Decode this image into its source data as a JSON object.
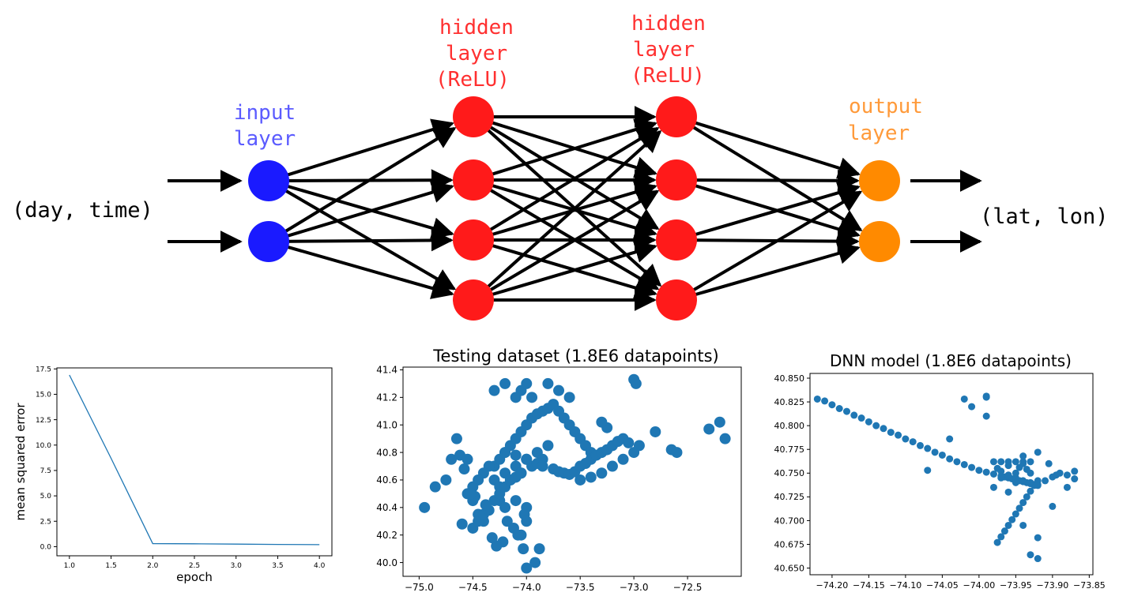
{
  "colors": {
    "input": "#1a1aff",
    "hidden": "#ff1a1a",
    "output": "#ff8a00",
    "input_label": "#5b5bff",
    "hidden_label": "#ff3030",
    "output_label": "#ff9a3a",
    "point": "#1f77b4",
    "arrow": "#000000"
  },
  "network": {
    "input_text": "(day, time)",
    "output_text": "(lat, lon)",
    "input_label": [
      "input",
      "layer"
    ],
    "hidden1_label": [
      "hidden",
      "layer",
      "(ReLU)"
    ],
    "hidden2_label": [
      "hidden",
      "layer",
      "(ReLU)"
    ],
    "output_label": [
      "output",
      "layer"
    ],
    "layer_sizes": [
      2,
      4,
      4,
      2
    ]
  },
  "chart_data": [
    {
      "type": "line",
      "title": "",
      "xlabel": "epoch",
      "ylabel": "mean squared error",
      "xlim": [
        0.85,
        4.15
      ],
      "ylim": [
        -0.9,
        17.6
      ],
      "xticks": [
        "1.0",
        "1.5",
        "2.0",
        "2.5",
        "3.0",
        "3.5",
        "4.0"
      ],
      "yticks": [
        "0.0",
        "2.5",
        "5.0",
        "7.5",
        "10.0",
        "12.5",
        "15.0",
        "17.5"
      ],
      "x": [
        1.0,
        1.25,
        1.5,
        1.75,
        2.0,
        2.5,
        3.0,
        3.5,
        4.0
      ],
      "y": [
        16.9,
        12.8,
        8.7,
        4.5,
        0.3,
        0.28,
        0.25,
        0.22,
        0.2
      ]
    },
    {
      "type": "scatter",
      "title": "Testing dataset (1.8E6 datapoints)",
      "xlabel": "",
      "ylabel": "",
      "xlim": [
        -75.15,
        -72.0
      ],
      "ylim": [
        39.9,
        41.42
      ],
      "xticks": [
        "−75.0",
        "−74.5",
        "−74.0",
        "−73.5",
        "−73.0",
        "−72.5"
      ],
      "yticks": [
        "40.0",
        "40.2",
        "40.4",
        "40.6",
        "40.8",
        "41.0",
        "41.2",
        "41.4"
      ],
      "x": [
        -74.3,
        -74.25,
        -74.2,
        -74.15,
        -74.1,
        -74.05,
        -74.0,
        -73.95,
        -73.9,
        -73.85,
        -73.8,
        -73.75,
        -73.7,
        -73.65,
        -73.6,
        -73.55,
        -73.5,
        -73.45,
        -73.4,
        -74.3,
        -74.2,
        -74.1,
        -74.0,
        -73.9,
        -73.8,
        -74.25,
        -74.15,
        -74.05,
        -73.95,
        -73.85,
        -74.35,
        -74.4,
        -74.45,
        -74.5,
        -74.55,
        -74.2,
        -74.1,
        -74.0,
        -73.9,
        -73.85,
        -73.75,
        -73.7,
        -73.65,
        -73.6,
        -73.55,
        -73.5,
        -73.45,
        -73.4,
        -73.35,
        -73.3,
        -73.25,
        -73.2,
        -73.15,
        -73.1,
        -73.05,
        -73.5,
        -73.4,
        -73.3,
        -73.2,
        -73.1,
        -73.0,
        -72.95,
        -74.3,
        -74.2,
        -74.1,
        -74.05,
        -74.0,
        -73.95,
        -74.25,
        -74.2,
        -74.1,
        -74.0,
        -74.02,
        -74.0,
        -74.05,
        -74.03,
        -74.95,
        -74.85,
        -74.75,
        -74.7,
        -74.65,
        -74.62,
        -74.58,
        -74.55,
        -74.5,
        -74.45,
        -74.4,
        -74.6,
        -74.5,
        -74.45,
        -74.4,
        -74.35,
        -74.3,
        -74.25,
        -74.2,
        -74.15,
        -74.1,
        -74.05,
        -73.0,
        -72.98,
        -72.8,
        -72.65,
        -72.6,
        -72.3,
        -72.2,
        -72.15,
        -73.25,
        -73.3,
        -73.8,
        -73.7,
        -73.6,
        -74.0,
        -73.92,
        -73.88,
        -74.18,
        -74.12,
        -74.08,
        -74.22,
        -74.28,
        -74.32,
        -74.38,
        -74.48,
        -74.52
      ],
      "y": [
        40.7,
        40.75,
        40.8,
        40.85,
        40.9,
        40.95,
        41.0,
        41.05,
        41.08,
        41.1,
        41.12,
        41.15,
        41.1,
        41.05,
        41.0,
        40.95,
        40.9,
        40.85,
        40.8,
        40.6,
        40.65,
        40.7,
        40.75,
        40.8,
        40.85,
        40.55,
        40.6,
        40.65,
        40.7,
        40.75,
        40.7,
        40.65,
        40.6,
        40.55,
        40.5,
        40.8,
        40.78,
        40.75,
        40.72,
        40.7,
        40.68,
        40.66,
        40.65,
        40.64,
        40.66,
        40.7,
        40.72,
        40.75,
        40.78,
        40.8,
        40.82,
        40.85,
        40.88,
        40.9,
        40.87,
        40.6,
        40.62,
        40.65,
        40.7,
        40.75,
        40.8,
        40.85,
        41.25,
        41.3,
        41.2,
        41.25,
        41.3,
        41.2,
        40.45,
        40.4,
        40.45,
        40.4,
        40.35,
        40.3,
        40.2,
        40.1,
        40.4,
        40.55,
        40.6,
        40.75,
        40.9,
        40.78,
        40.68,
        40.75,
        40.45,
        40.35,
        40.3,
        40.28,
        40.25,
        40.3,
        40.35,
        40.38,
        40.45,
        40.5,
        40.55,
        40.6,
        40.62,
        40.65,
        41.33,
        41.3,
        40.95,
        40.82,
        40.8,
        40.97,
        41.02,
        40.9,
        40.98,
        41.02,
        41.3,
        41.25,
        41.2,
        39.96,
        40.0,
        40.1,
        40.3,
        40.25,
        40.2,
        40.15,
        40.12,
        40.18,
        40.42,
        40.48,
        40.5
      ]
    },
    {
      "type": "scatter",
      "title": "DNN model (1.8E6 datapoints)",
      "xlabel": "",
      "ylabel": "",
      "xlim": [
        -74.23,
        -73.845
      ],
      "ylim": [
        40.643,
        40.855
      ],
      "xticks": [
        "−74.20",
        "−74.15",
        "−74.10",
        "−74.05",
        "−74.00",
        "−73.95",
        "−73.90",
        "−73.85"
      ],
      "yticks": [
        "40.650",
        "40.675",
        "40.700",
        "40.725",
        "40.750",
        "40.775",
        "40.800",
        "40.825",
        "40.850"
      ],
      "x": [
        -74.22,
        -74.21,
        -74.2,
        -74.19,
        -74.18,
        -74.17,
        -74.16,
        -74.15,
        -74.14,
        -74.13,
        -74.12,
        -74.11,
        -74.1,
        -74.09,
        -74.08,
        -74.07,
        -74.06,
        -74.05,
        -74.04,
        -74.03,
        -74.02,
        -74.01,
        -74.0,
        -73.99,
        -73.98,
        -73.97,
        -73.965,
        -73.96,
        -73.955,
        -73.95,
        -73.945,
        -73.94,
        -73.935,
        -73.93,
        -73.925,
        -73.92,
        -73.98,
        -73.97,
        -73.96,
        -73.95,
        -73.94,
        -73.93,
        -73.975,
        -73.97,
        -73.965,
        -73.96,
        -73.955,
        -73.95,
        -73.945,
        -73.94,
        -73.935,
        -73.93,
        -73.925,
        -73.92,
        -73.96,
        -73.95,
        -73.94,
        -73.93,
        -73.92,
        -73.91,
        -73.9,
        -73.89,
        -73.88,
        -73.87,
        -73.975,
        -73.97,
        -73.96,
        -73.95,
        -73.945,
        -73.94,
        -73.935,
        -73.93,
        -73.99,
        -74.01,
        -74.02,
        -73.99,
        -74.04,
        -74.07,
        -73.99,
        -73.93,
        -73.92,
        -73.9,
        -73.92,
        -73.94,
        -73.95,
        -73.96,
        -73.98,
        -73.97,
        -73.94,
        -73.92,
        -73.88,
        -73.87,
        -73.895,
        -73.905
      ],
      "y": [
        40.828,
        40.826,
        40.822,
        40.818,
        40.815,
        40.811,
        40.808,
        40.804,
        40.8,
        40.797,
        40.793,
        40.79,
        40.786,
        40.783,
        40.779,
        40.776,
        40.772,
        40.769,
        40.765,
        40.762,
        40.759,
        40.756,
        40.753,
        40.751,
        40.749,
        40.747,
        40.746,
        40.745,
        40.744,
        40.743,
        40.742,
        40.741,
        40.74,
        40.739,
        40.738,
        40.737,
        40.762,
        40.762,
        40.762,
        40.762,
        40.762,
        40.762,
        40.677,
        40.683,
        40.689,
        40.695,
        40.701,
        40.707,
        40.713,
        40.719,
        40.725,
        40.731,
        40.737,
        40.742,
        40.748,
        40.745,
        40.742,
        40.74,
        40.738,
        40.742,
        40.746,
        40.75,
        40.748,
        40.744,
        40.755,
        40.752,
        40.758,
        40.75,
        40.756,
        40.76,
        40.754,
        40.75,
        40.83,
        40.82,
        40.828,
        40.831,
        40.786,
        40.753,
        40.81,
        40.664,
        40.682,
        40.715,
        40.772,
        40.768,
        40.74,
        40.73,
        40.735,
        40.745,
        40.695,
        40.66,
        40.735,
        40.752,
        40.748,
        40.76
      ]
    }
  ]
}
